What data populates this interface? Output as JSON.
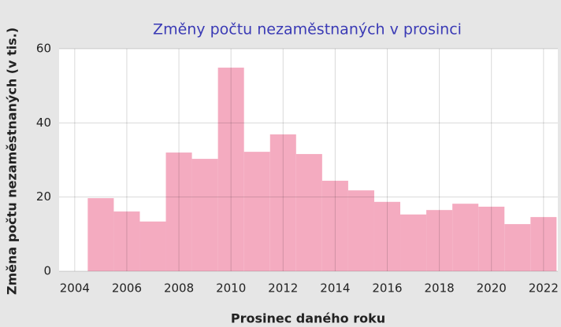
{
  "chart_data": {
    "type": "bar",
    "title": "Změny počtu nezaměstnaných v prosinci",
    "xlabel": "Prosinec daného roku",
    "ylabel": "Změna počtu nezaměstnaných (v tis.)",
    "x": [
      2005,
      2006,
      2007,
      2008,
      2009,
      2010,
      2011,
      2012,
      2013,
      2014,
      2015,
      2016,
      2017,
      2018,
      2019,
      2020,
      2021,
      2022
    ],
    "values": [
      19.7,
      16.1,
      13.4,
      32.0,
      30.3,
      54.9,
      32.2,
      36.9,
      31.6,
      24.4,
      21.8,
      18.7,
      15.3,
      16.5,
      18.2,
      17.4,
      12.7,
      14.6
    ],
    "color": "#f4abc0",
    "xlim": [
      2003.4,
      2022.55
    ],
    "xticks": [
      2004,
      2006,
      2008,
      2010,
      2012,
      2014,
      2016,
      2018,
      2020,
      2022
    ],
    "ylim": [
      0,
      60
    ],
    "yticks": [
      0,
      20,
      40,
      60
    ],
    "grid": true
  }
}
